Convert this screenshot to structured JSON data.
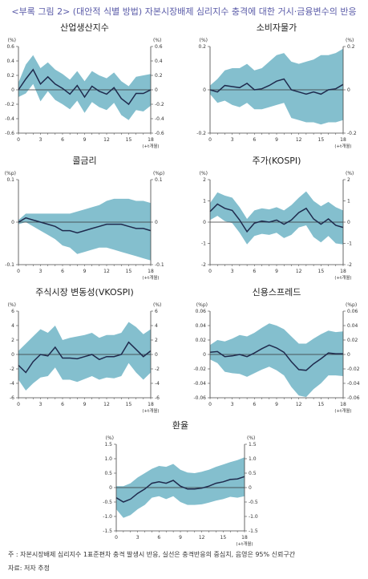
{
  "header": {
    "title": "<부록 그림 2> (대안적 식별 방법) 자본시장배제 심리지수 충격에 대한 거시·금융변수의 반응"
  },
  "footer": {
    "note": "주   : 자본시장배제 심리지수 1표준편차 충격 발생시 반응, 실선은 충격반응의 중심치, 음영은 95% 신뢰구간",
    "source": "자료: 저자 추정"
  },
  "colors": {
    "band": "#84bfce",
    "line": "#1f2a4d",
    "zero": "#333333",
    "axis": "#444444"
  },
  "chart_data": [
    {
      "type": "area",
      "title": "산업생산지수",
      "unit_left": "(%)",
      "unit_right": "(%)",
      "xlabel": "(+t개월)",
      "x": [
        0,
        1,
        2,
        3,
        4,
        5,
        6,
        7,
        8,
        9,
        10,
        11,
        12,
        13,
        14,
        15,
        16,
        17,
        18
      ],
      "xticks": [
        0,
        3,
        6,
        9,
        12,
        15,
        18
      ],
      "ylim": [
        -0.6,
        0.6
      ],
      "yticks": [
        0.6,
        0.4,
        0.2,
        0,
        -0.2,
        -0.4,
        -0.6
      ],
      "ytick_labels": [
        "0.6",
        "0.4",
        "0.2",
        "0",
        "-0.2",
        "-0.4",
        "-0.6"
      ],
      "ytick_labels_right": [
        "0.6",
        "0.4",
        "0.2",
        "0",
        "-0.2",
        "-0.4",
        "-0.6"
      ],
      "series": [
        {
          "role": "center",
          "values": [
            0,
            0.15,
            0.28,
            0.08,
            0.18,
            0.08,
            0.02,
            -0.06,
            0.06,
            -0.1,
            0.05,
            -0.02,
            -0.06,
            0.03,
            -0.12,
            -0.2,
            -0.05,
            -0.05,
            0.0
          ]
        },
        {
          "role": "upper",
          "values": [
            0.1,
            0.35,
            0.48,
            0.3,
            0.38,
            0.28,
            0.22,
            0.14,
            0.26,
            0.12,
            0.26,
            0.2,
            0.16,
            0.24,
            0.12,
            0.05,
            0.18,
            0.2,
            0.22
          ]
        },
        {
          "role": "lower",
          "values": [
            -0.1,
            -0.05,
            0.08,
            -0.16,
            -0.02,
            -0.14,
            -0.2,
            -0.27,
            -0.15,
            -0.32,
            -0.17,
            -0.24,
            -0.28,
            -0.18,
            -0.35,
            -0.42,
            -0.28,
            -0.3,
            -0.22
          ]
        }
      ]
    },
    {
      "type": "area",
      "title": "소비자물가",
      "unit_left": "(%)",
      "unit_right": "(%)",
      "xlabel": "(+t개월)",
      "x": [
        0,
        1,
        2,
        3,
        4,
        5,
        6,
        7,
        8,
        9,
        10,
        11,
        12,
        13,
        14,
        15,
        16,
        17,
        18
      ],
      "xticks": [
        0,
        3,
        6,
        9,
        12,
        15,
        18
      ],
      "ylim": [
        -0.2,
        0.2
      ],
      "yticks": [
        0.2,
        0,
        -0.2
      ],
      "ytick_labels": [
        "0.2",
        "0",
        "-0.2"
      ],
      "ytick_labels_right": [
        "0.2",
        "0",
        "-0.2"
      ],
      "series": [
        {
          "role": "center",
          "values": [
            0.0,
            -0.01,
            0.02,
            0.015,
            0.01,
            0.03,
            0.0,
            0.005,
            0.02,
            0.04,
            0.05,
            0.0,
            -0.01,
            -0.02,
            -0.01,
            -0.02,
            0.0,
            0.005,
            0.025
          ]
        },
        {
          "role": "upper",
          "values": [
            0.02,
            0.05,
            0.09,
            0.1,
            0.1,
            0.12,
            0.09,
            0.1,
            0.13,
            0.16,
            0.17,
            0.13,
            0.12,
            0.13,
            0.14,
            0.16,
            0.16,
            0.17,
            0.19
          ]
        },
        {
          "role": "lower",
          "values": [
            -0.02,
            -0.06,
            -0.05,
            -0.07,
            -0.08,
            -0.06,
            -0.09,
            -0.09,
            -0.08,
            -0.07,
            -0.06,
            -0.13,
            -0.14,
            -0.15,
            -0.15,
            -0.16,
            -0.15,
            -0.15,
            -0.14
          ]
        }
      ]
    },
    {
      "type": "area",
      "title": "콜금리",
      "unit_left": "(%p)",
      "unit_right": "(%p)",
      "xlabel": "(+t개월)",
      "x": [
        0,
        1,
        2,
        3,
        4,
        5,
        6,
        7,
        8,
        9,
        10,
        11,
        12,
        13,
        14,
        15,
        16,
        17,
        18
      ],
      "xticks": [
        0,
        3,
        6,
        9,
        12,
        15,
        18
      ],
      "ylim": [
        -0.1,
        0.1
      ],
      "yticks": [
        0.1,
        0,
        -0.1
      ],
      "ytick_labels": [
        "0.1",
        "0",
        "-0.1"
      ],
      "ytick_labels_right": [
        "0.1",
        "0",
        "-0.1"
      ],
      "series": [
        {
          "role": "center",
          "values": [
            0,
            0.01,
            0.005,
            0,
            -0.005,
            -0.01,
            -0.02,
            -0.02,
            -0.025,
            -0.02,
            -0.015,
            -0.01,
            -0.005,
            -0.005,
            -0.005,
            -0.01,
            -0.015,
            -0.015,
            -0.02
          ]
        },
        {
          "role": "upper",
          "values": [
            0.005,
            0.02,
            0.02,
            0.02,
            0.02,
            0.02,
            0.02,
            0.02,
            0.025,
            0.03,
            0.035,
            0.04,
            0.05,
            0.055,
            0.055,
            0.055,
            0.05,
            0.05,
            0.045
          ]
        },
        {
          "role": "lower",
          "values": [
            -0.005,
            0,
            -0.01,
            -0.02,
            -0.03,
            -0.04,
            -0.055,
            -0.06,
            -0.075,
            -0.07,
            -0.065,
            -0.06,
            -0.06,
            -0.065,
            -0.07,
            -0.075,
            -0.08,
            -0.085,
            -0.09
          ]
        }
      ]
    },
    {
      "type": "area",
      "title": "주가(KOSPI)",
      "unit_left": "(%)",
      "unit_right": "(%)",
      "xlabel": "(+t개월)",
      "x": [
        0,
        1,
        2,
        3,
        4,
        5,
        6,
        7,
        8,
        9,
        10,
        11,
        12,
        13,
        14,
        15,
        16,
        17,
        18
      ],
      "xticks": [
        0,
        3,
        6,
        9,
        12,
        15,
        18
      ],
      "ylim": [
        -2,
        2
      ],
      "yticks": [
        2,
        1,
        0,
        -1,
        -2
      ],
      "ytick_labels": [
        "2",
        "1",
        "0",
        "-1",
        "-2"
      ],
      "ytick_labels_right": [
        "2",
        "1",
        "0",
        "-1",
        "-2"
      ],
      "series": [
        {
          "role": "center",
          "values": [
            0.5,
            0.85,
            0.65,
            0.55,
            0.1,
            -0.45,
            -0.05,
            0.05,
            0.0,
            0.1,
            -0.1,
            0.1,
            0.45,
            0.65,
            0.15,
            -0.1,
            0.15,
            -0.15,
            -0.25
          ]
        },
        {
          "role": "upper",
          "values": [
            0.9,
            1.4,
            1.25,
            1.15,
            0.7,
            0.15,
            0.55,
            0.65,
            0.6,
            0.7,
            0.55,
            0.8,
            1.15,
            1.45,
            1.0,
            0.75,
            0.95,
            0.7,
            0.55
          ]
        },
        {
          "role": "lower",
          "values": [
            0.1,
            0.3,
            0.05,
            -0.05,
            -0.5,
            -1.05,
            -0.65,
            -0.55,
            -0.6,
            -0.5,
            -0.75,
            -0.6,
            -0.25,
            -0.15,
            -0.7,
            -0.95,
            -0.65,
            -1.0,
            -1.05
          ]
        }
      ]
    },
    {
      "type": "area",
      "title": "주식시장 변동성(VKOSPI)",
      "unit_left": "(%)",
      "unit_right": "(%)",
      "xlabel": "(+t개월)",
      "x": [
        0,
        1,
        2,
        3,
        4,
        5,
        6,
        7,
        8,
        9,
        10,
        11,
        12,
        13,
        14,
        15,
        16,
        17,
        18
      ],
      "xticks": [
        0,
        3,
        6,
        9,
        12,
        15,
        18
      ],
      "ylim": [
        -6,
        6
      ],
      "yticks": [
        6,
        4,
        2,
        0,
        -2,
        -4,
        -6
      ],
      "ytick_labels": [
        "6",
        "4",
        "2",
        "0",
        "-2",
        "-4",
        "-6"
      ],
      "ytick_labels_right": [
        "6",
        "4",
        "2",
        "0",
        "-2",
        "-4",
        "-6"
      ],
      "series": [
        {
          "role": "center",
          "values": [
            -1.5,
            -2.5,
            -1,
            0,
            -0.2,
            1,
            -0.5,
            -0.5,
            -0.6,
            -0.3,
            0,
            -0.7,
            -0.3,
            -0.3,
            0,
            1.7,
            0.7,
            -0.3,
            0.5
          ]
        },
        {
          "role": "upper",
          "values": [
            0.5,
            1.5,
            2.5,
            3.5,
            3,
            4,
            2,
            2.3,
            2.5,
            2.7,
            3,
            2.3,
            2.7,
            2.7,
            3,
            4.5,
            3.8,
            2.8,
            3.5
          ]
        },
        {
          "role": "lower",
          "values": [
            -3.5,
            -5,
            -4,
            -3.2,
            -3,
            -1.8,
            -3.5,
            -3.5,
            -3.8,
            -3.4,
            -3,
            -3.5,
            -3.2,
            -3.3,
            -3,
            -1.2,
            -2.5,
            -3.5,
            -2.5
          ]
        }
      ]
    },
    {
      "type": "area",
      "title": "신용스프레드",
      "unit_left": "(%p)",
      "unit_right": "(%p)",
      "xlabel": "(+t개월)",
      "x": [
        0,
        1,
        2,
        3,
        4,
        5,
        6,
        7,
        8,
        9,
        10,
        11,
        12,
        13,
        14,
        15,
        16,
        17,
        18
      ],
      "xticks": [
        0,
        3,
        6,
        9,
        12,
        15,
        18
      ],
      "ylim": [
        -0.06,
        0.06
      ],
      "yticks": [
        0.06,
        0.04,
        0.02,
        0,
        -0.02,
        -0.04,
        -0.06
      ],
      "ytick_labels": [
        "0.06",
        "0.04",
        "0.02",
        "0",
        "-0.02",
        "-0.04",
        "-0.06"
      ],
      "ytick_labels_right": [
        "0.06",
        "0.04",
        "0.02",
        "0",
        "-0.02",
        "-0.04",
        "-0.06"
      ],
      "series": [
        {
          "role": "center",
          "values": [
            0.003,
            0.004,
            -0.003,
            -0.002,
            0,
            -0.003,
            0.002,
            0.008,
            0.013,
            0.009,
            0.003,
            -0.01,
            -0.021,
            -0.022,
            -0.013,
            -0.006,
            0.002,
            0.001,
            0.001
          ]
        },
        {
          "role": "upper",
          "values": [
            0.013,
            0.02,
            0.018,
            0.022,
            0.027,
            0.025,
            0.03,
            0.037,
            0.043,
            0.04,
            0.035,
            0.025,
            0.015,
            0.015,
            0.022,
            0.028,
            0.033,
            0.031,
            0.032
          ]
        },
        {
          "role": "lower",
          "values": [
            -0.007,
            -0.012,
            -0.024,
            -0.026,
            -0.027,
            -0.031,
            -0.026,
            -0.021,
            -0.017,
            -0.022,
            -0.029,
            -0.045,
            -0.057,
            -0.059,
            -0.048,
            -0.04,
            -0.029,
            -0.029,
            -0.03
          ]
        }
      ]
    },
    {
      "type": "area",
      "title": "환율",
      "unit_left": "(%)",
      "unit_right": "(%)",
      "xlabel": "(+t개월)",
      "x": [
        0,
        1,
        2,
        3,
        4,
        5,
        6,
        7,
        8,
        9,
        10,
        11,
        12,
        13,
        14,
        15,
        16,
        17,
        18
      ],
      "xticks": [
        0,
        3,
        6,
        9,
        12,
        15,
        18
      ],
      "ylim": [
        -1.5,
        1.5
      ],
      "yticks": [
        1.5,
        1.0,
        0.5,
        0,
        -0.5,
        -1.0,
        -1.5
      ],
      "ytick_labels": [
        "1.5",
        "1.0",
        "0.5",
        "0",
        "-0.5",
        "-1.0",
        "-1.5"
      ],
      "ytick_labels_right": [
        "1.5",
        "1.0",
        "0.5",
        "0",
        "-0.5",
        "-1.0",
        "-1.5"
      ],
      "series": [
        {
          "role": "center",
          "values": [
            -0.35,
            -0.5,
            -0.4,
            -0.2,
            -0.05,
            0.15,
            0.2,
            0.15,
            0.25,
            0.05,
            -0.05,
            -0.05,
            -0.02,
            0.05,
            0.15,
            0.2,
            0.28,
            0.3,
            0.38
          ]
        },
        {
          "role": "upper",
          "values": [
            0.05,
            0.05,
            0.15,
            0.35,
            0.5,
            0.65,
            0.75,
            0.72,
            0.82,
            0.62,
            0.52,
            0.5,
            0.55,
            0.62,
            0.72,
            0.8,
            0.88,
            0.95,
            1.05
          ]
        },
        {
          "role": "lower",
          "values": [
            -0.75,
            -1.05,
            -0.95,
            -0.75,
            -0.6,
            -0.35,
            -0.3,
            -0.4,
            -0.3,
            -0.5,
            -0.6,
            -0.6,
            -0.58,
            -0.52,
            -0.45,
            -0.4,
            -0.32,
            -0.35,
            -0.3
          ]
        }
      ]
    }
  ]
}
